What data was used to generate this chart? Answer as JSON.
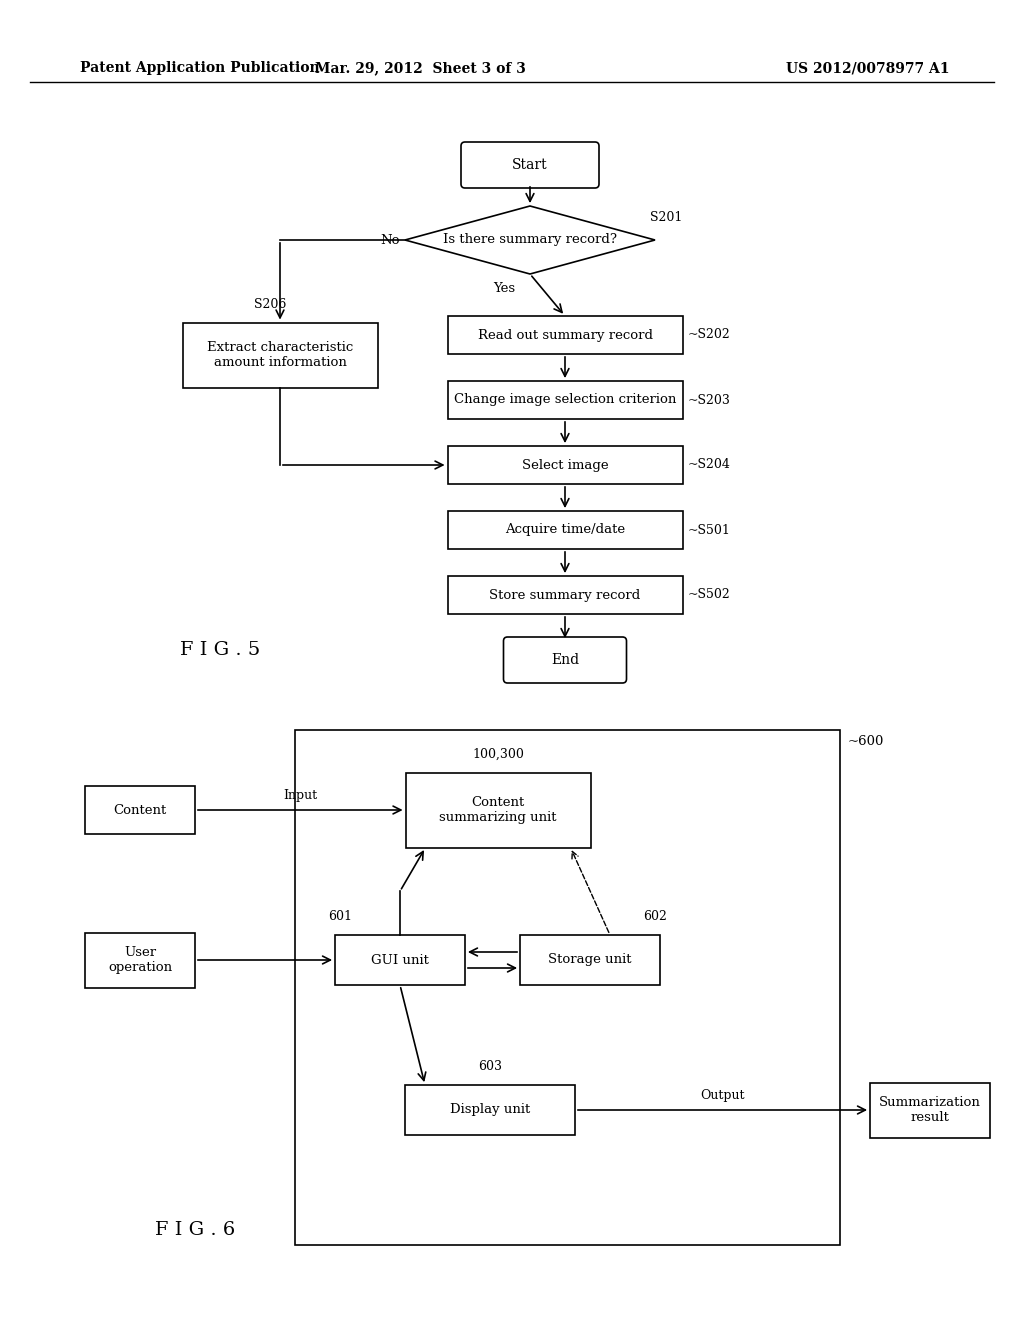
{
  "background_color": "#ffffff",
  "header_left": "Patent Application Publication",
  "header_center": "Mar. 29, 2012  Sheet 3 of 3",
  "header_right": "US 2012/0078977 A1"
}
